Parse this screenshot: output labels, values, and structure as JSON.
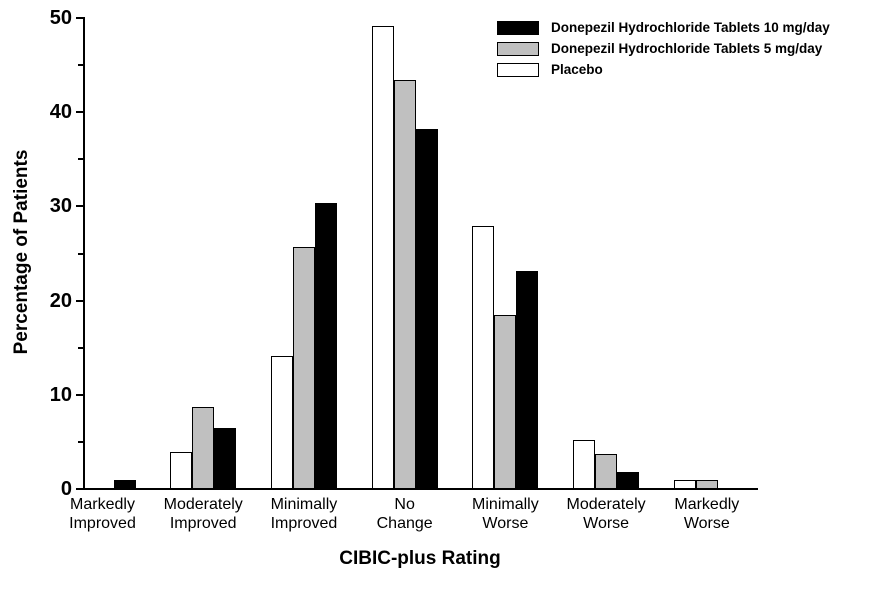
{
  "chart_data": {
    "type": "bar",
    "title": "",
    "xlabel": "CIBIC-plus Rating",
    "ylabel": "Percentage of Patients",
    "ylim": [
      0,
      50
    ],
    "y_major_ticks": [
      0,
      10,
      20,
      30,
      40,
      50
    ],
    "y_minor_ticks": [
      5,
      15,
      25,
      35,
      45
    ],
    "grid": "off",
    "legend_position": "top-right",
    "categories": [
      "Markedly Improved",
      "Moderately Improved",
      "Minimally Improved",
      "No Change",
      "Minimally Worse",
      "Moderately Worse",
      "Markedly Worse"
    ],
    "category_label_lines": [
      [
        "Markedly",
        "Improved"
      ],
      [
        "Moderately",
        "Improved"
      ],
      [
        "Minimally",
        "Improved"
      ],
      [
        "No",
        "Change"
      ],
      [
        "Minimally",
        "Worse"
      ],
      [
        "Moderately",
        "Worse"
      ],
      [
        "Markedly",
        "Worse"
      ]
    ],
    "series": [
      {
        "key": "placebo",
        "name": "Placebo",
        "color": "#ffffff",
        "values": [
          0,
          3.8,
          14.0,
          49.0,
          27.8,
          5.1,
          0.8
        ]
      },
      {
        "key": "donepezil-5mg",
        "name": "Donepezil Hydrochloride Tablets 5 mg/day",
        "color": "#c0c0c0",
        "values": [
          0,
          8.6,
          25.6,
          43.3,
          18.4,
          3.6,
          0.8
        ]
      },
      {
        "key": "donepezil-10mg",
        "name": "Donepezil Hydrochloride Tablets 10 mg/day",
        "color": "#000000",
        "values": [
          0.9,
          6.4,
          30.3,
          38.1,
          23.0,
          1.7,
          0
        ]
      }
    ],
    "legend": [
      {
        "label": "Donepezil Hydrochloride Tablets 10 mg/day",
        "color": "#000000"
      },
      {
        "label": "Donepezil Hydrochloride Tablets 5 mg/day",
        "color": "#c0c0c0"
      },
      {
        "label": "Placebo",
        "color": "#ffffff"
      }
    ],
    "colors": {
      "axis": "#000000",
      "background": "#ffffff"
    }
  }
}
